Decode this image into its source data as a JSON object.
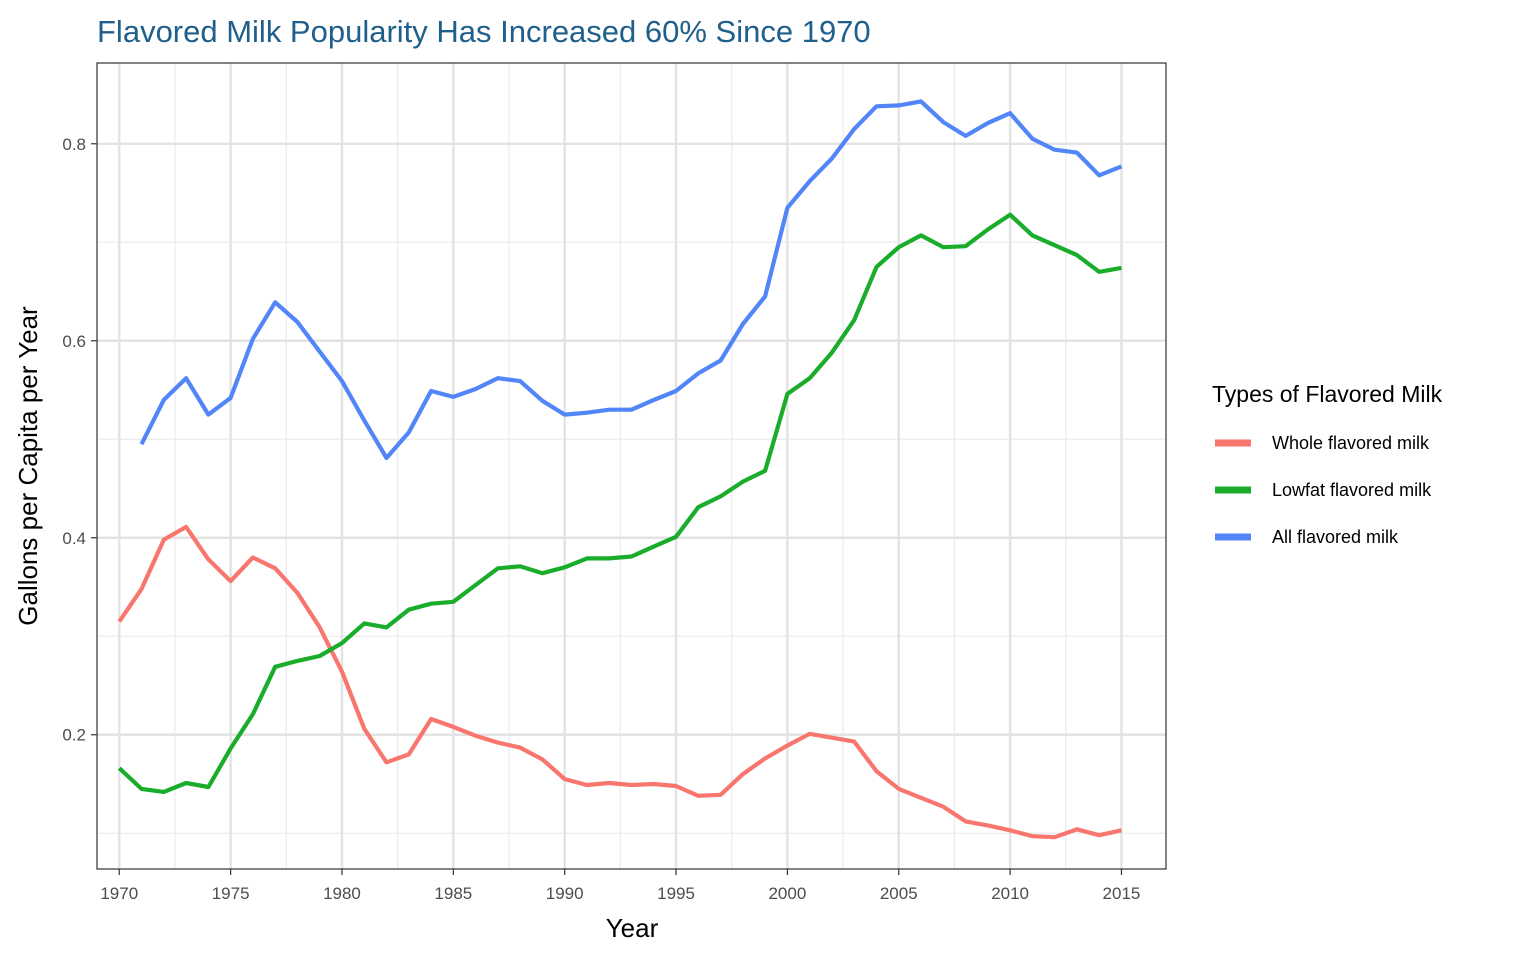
{
  "chart_data": {
    "type": "line",
    "title": "Flavored Milk Popularity Has Increased 60% Since 1970",
    "xlabel": "Year",
    "ylabel": "Gallons per Capita per Year",
    "xlim": [
      1969,
      2017
    ],
    "ylim": [
      0.0637,
      0.882
    ],
    "x_ticks": [
      1970,
      1975,
      1980,
      1985,
      1990,
      1995,
      2000,
      2005,
      2010,
      2015
    ],
    "x_tick_labels": [
      "1970",
      "1975",
      "1980",
      "1985",
      "1990",
      "1995",
      "2000",
      "2005",
      "2010",
      "2015"
    ],
    "x_minor_ticks": [
      1972.5,
      1977.5,
      1982.5,
      1987.5,
      1992.5,
      1997.5,
      2002.5,
      2007.5,
      2012.5
    ],
    "y_ticks": [
      0.2,
      0.4,
      0.6,
      0.8
    ],
    "y_tick_labels": [
      "0.2",
      "0.4",
      "0.6",
      "0.8"
    ],
    "y_minor_ticks": [
      0.1,
      0.3,
      0.5,
      0.7
    ],
    "grid": true,
    "legend": {
      "title": "Types of Flavored Milk",
      "position": "right"
    },
    "series": [
      {
        "name": "Whole flavored milk",
        "color": "#f8766d",
        "x": [
          1970,
          1971,
          1972,
          1973,
          1974,
          1975,
          1976,
          1977,
          1978,
          1979,
          1980,
          1981,
          1982,
          1983,
          1984,
          1985,
          1986,
          1987,
          1988,
          1989,
          1990,
          1991,
          1992,
          1993,
          1994,
          1995,
          1996,
          1997,
          1998,
          1999,
          2000,
          2001,
          2002,
          2003,
          2004,
          2005,
          2006,
          2007,
          2008,
          2009,
          2010,
          2011,
          2012,
          2013,
          2014,
          2015
        ],
        "values": [
          0.315,
          0.348,
          0.398,
          0.411,
          0.378,
          0.356,
          0.38,
          0.369,
          0.344,
          0.309,
          0.264,
          0.206,
          0.172,
          0.18,
          0.216,
          0.208,
          0.199,
          0.192,
          0.187,
          0.175,
          0.155,
          0.149,
          0.151,
          0.149,
          0.15,
          0.148,
          0.138,
          0.139,
          0.16,
          0.176,
          0.189,
          0.201,
          0.197,
          0.193,
          0.163,
          0.145,
          0.136,
          0.127,
          0.112,
          0.108,
          0.103,
          0.097,
          0.096,
          0.104,
          0.098,
          0.103
        ]
      },
      {
        "name": "Lowfat flavored milk",
        "color": "#1aad2b",
        "x": [
          1970,
          1971,
          1972,
          1973,
          1974,
          1975,
          1976,
          1977,
          1978,
          1979,
          1980,
          1981,
          1982,
          1983,
          1984,
          1985,
          1986,
          1987,
          1988,
          1989,
          1990,
          1991,
          1992,
          1993,
          1994,
          1995,
          1996,
          1997,
          1998,
          1999,
          2000,
          2001,
          2002,
          2003,
          2004,
          2005,
          2006,
          2007,
          2008,
          2009,
          2010,
          2011,
          2012,
          2013,
          2014,
          2015
        ],
        "values": [
          0.166,
          0.145,
          0.142,
          0.151,
          0.147,
          0.186,
          0.221,
          0.269,
          0.275,
          0.28,
          0.293,
          0.313,
          0.309,
          0.327,
          0.333,
          0.335,
          0.352,
          0.369,
          0.371,
          0.364,
          0.37,
          0.379,
          0.379,
          0.381,
          0.391,
          0.401,
          0.431,
          0.442,
          0.457,
          0.468,
          0.546,
          0.562,
          0.588,
          0.621,
          0.675,
          0.695,
          0.707,
          0.695,
          0.696,
          0.713,
          0.728,
          0.707,
          0.697,
          0.687,
          0.67,
          0.674
        ]
      },
      {
        "name": "All flavored milk",
        "color": "#5286f8",
        "x": [
          1971,
          1972,
          1973,
          1974,
          1975,
          1976,
          1977,
          1978,
          1979,
          1980,
          1981,
          1982,
          1983,
          1984,
          1985,
          1986,
          1987,
          1988,
          1989,
          1990,
          1991,
          1992,
          1993,
          1994,
          1995,
          1996,
          1997,
          1998,
          1999,
          2000,
          2001,
          2002,
          2003,
          2004,
          2005,
          2006,
          2007,
          2008,
          2009,
          2010,
          2011,
          2012,
          2013,
          2014,
          2015
        ],
        "values": [
          0.495,
          0.54,
          0.562,
          0.525,
          0.542,
          0.602,
          0.639,
          0.619,
          0.589,
          0.559,
          0.519,
          0.481,
          0.507,
          0.549,
          0.543,
          0.551,
          0.562,
          0.559,
          0.539,
          0.525,
          0.527,
          0.53,
          0.53,
          0.54,
          0.549,
          0.567,
          0.58,
          0.617,
          0.645,
          0.735,
          0.762,
          0.785,
          0.815,
          0.838,
          0.839,
          0.843,
          0.822,
          0.808,
          0.821,
          0.831,
          0.805,
          0.794,
          0.791,
          0.768,
          0.777
        ]
      }
    ]
  }
}
